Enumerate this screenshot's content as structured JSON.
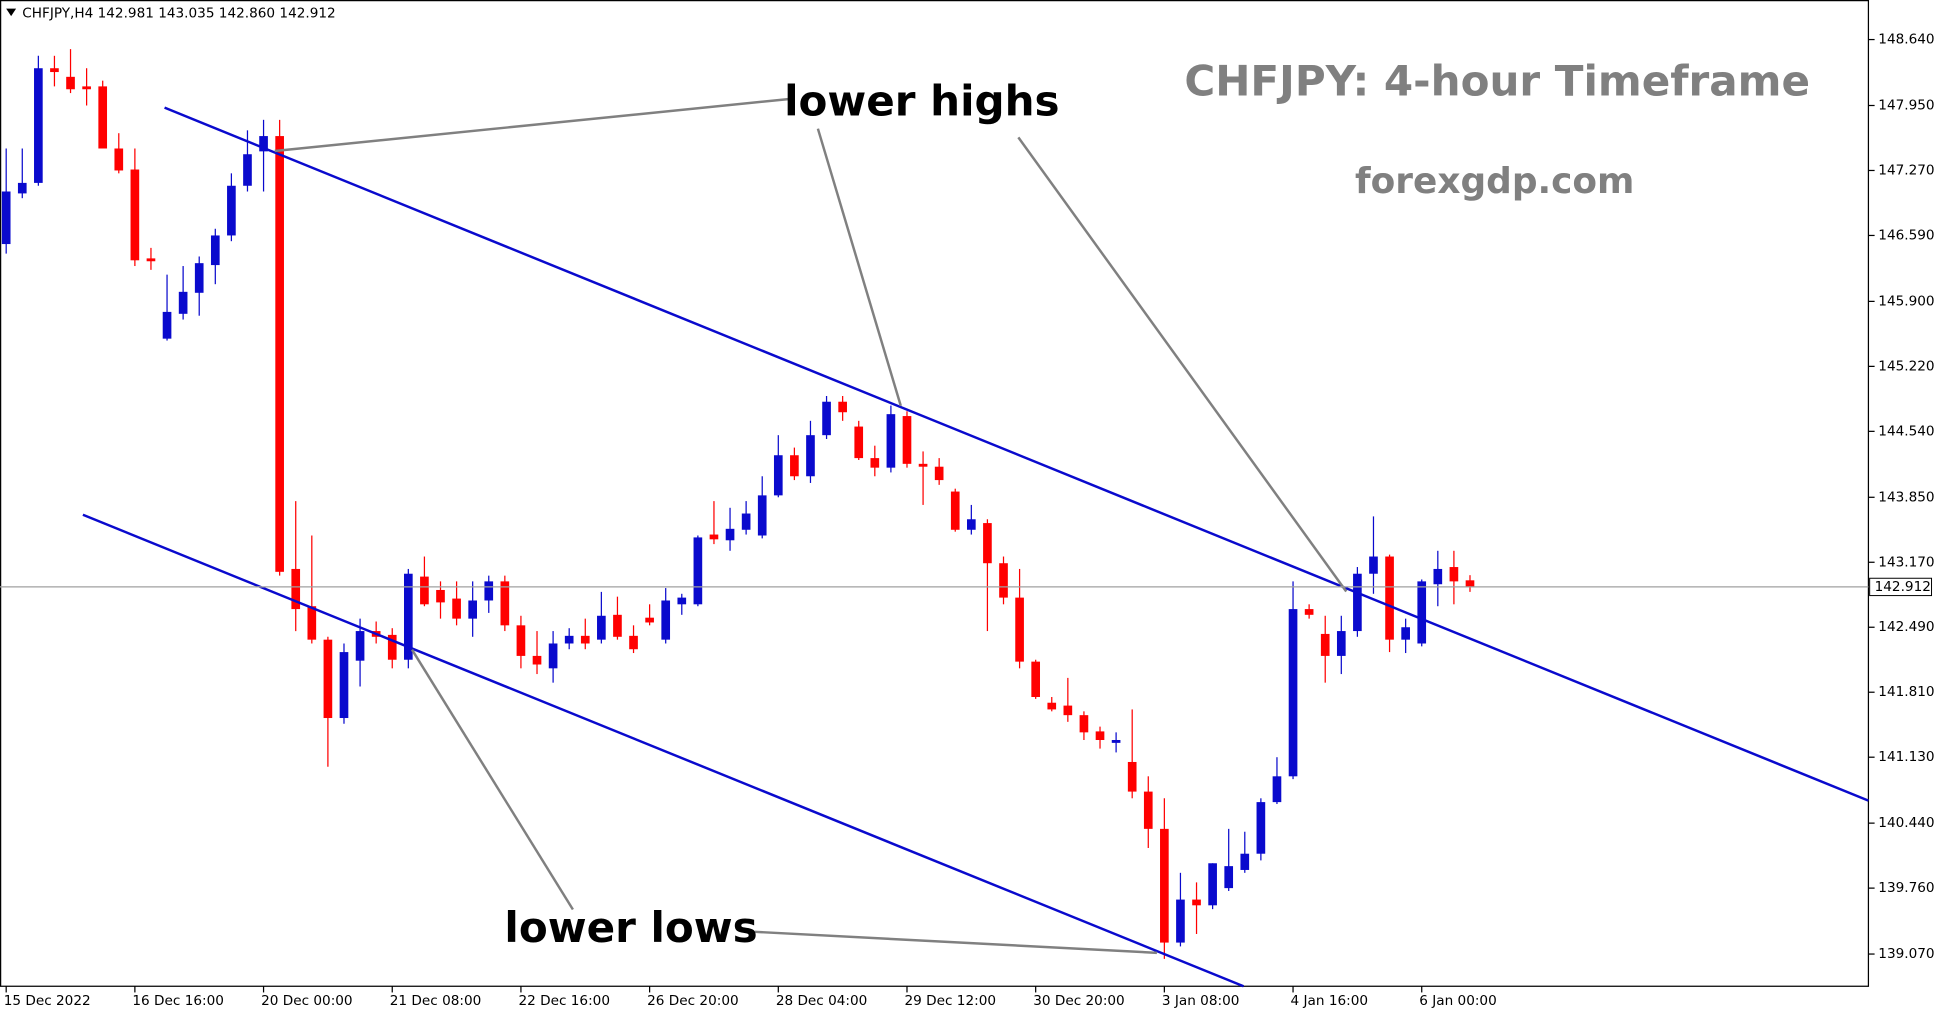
{
  "chart_data": {
    "type": "candlestick",
    "header": "CHFJPY,H4  142.981 143.035 142.860 142.912",
    "title": "CHFJPY: 4-hour Timeframe",
    "subtitle": "forexgdp.com",
    "annotations": [
      "lower highs",
      "lower lows"
    ],
    "up_color": "#0a0acd",
    "down_color": "#ff0000",
    "categories": [
      "15 Dec 2022",
      null,
      null,
      null,
      null,
      null,
      null,
      null,
      "16 Dec 16:00",
      null,
      null,
      null,
      null,
      null,
      null,
      null,
      "20 Dec 00:00",
      null,
      null,
      null,
      null,
      null,
      null,
      null,
      "21 Dec 08:00",
      null,
      null,
      null,
      null,
      null,
      null,
      null,
      "22 Dec 16:00",
      null,
      null,
      null,
      null,
      null,
      null,
      null,
      "26 Dec 20:00",
      null,
      null,
      null,
      null,
      null,
      null,
      null,
      "28 Dec 04:00",
      null,
      null,
      null,
      null,
      null,
      null,
      null,
      "29 Dec 12:00",
      null,
      null,
      null,
      null,
      null,
      null,
      null,
      "30 Dec 20:00",
      null,
      null,
      null,
      null,
      null,
      null,
      null,
      "3 Jan 08:00",
      null,
      null,
      null,
      null,
      null,
      null,
      null,
      "4 Jan 16:00",
      null,
      null,
      null,
      null,
      null,
      null,
      null,
      "6 Jan 00:00",
      null,
      null,
      null
    ],
    "open": [
      146.5,
      147.03,
      147.14,
      148.34,
      148.25,
      148.15,
      148.15,
      147.5,
      147.28,
      146.35,
      145.51,
      145.77,
      145.99,
      146.28,
      146.59,
      147.11,
      147.47,
      147.63,
      143.1,
      142.71,
      142.36,
      141.54,
      142.14,
      142.45,
      142.41,
      142.15,
      143.02,
      142.88,
      142.79,
      142.58,
      142.77,
      142.97,
      142.51,
      142.19,
      142.06,
      142.32,
      142.4,
      142.36,
      142.62,
      142.4,
      142.59,
      142.36,
      142.73,
      142.73,
      143.46,
      143.4,
      143.51,
      143.45,
      143.87,
      144.29,
      144.07,
      144.5,
      144.85,
      144.59,
      144.26,
      144.16,
      144.7,
      144.2,
      144.17,
      143.91,
      143.51,
      143.58,
      143.16,
      142.8,
      142.13,
      141.7,
      141.67,
      141.57,
      141.4,
      141.28,
      141.08,
      140.77,
      140.38,
      139.19,
      139.64,
      139.58,
      139.76,
      139.95,
      140.12,
      140.66,
      140.93,
      142.68,
      142.42,
      142.19,
      142.45,
      143.05,
      143.23,
      142.36,
      142.32,
      142.94,
      143.12,
      142.981
    ],
    "high": [
      147.5,
      147.5,
      148.47,
      148.47,
      148.54,
      148.34,
      148.21,
      147.66,
      147.5,
      146.46,
      146.18,
      146.27,
      146.37,
      146.66,
      147.24,
      147.69,
      147.8,
      147.8,
      143.81,
      143.45,
      142.39,
      142.32,
      142.58,
      142.55,
      142.48,
      143.1,
      143.23,
      142.97,
      142.97,
      142.97,
      143.03,
      143.03,
      142.61,
      142.45,
      142.45,
      142.48,
      142.58,
      142.86,
      142.81,
      142.51,
      142.73,
      142.9,
      142.84,
      143.45,
      143.81,
      143.74,
      143.81,
      144.07,
      144.5,
      144.37,
      144.65,
      144.91,
      144.91,
      144.65,
      144.39,
      144.81,
      144.75,
      144.33,
      144.26,
      143.94,
      143.77,
      143.62,
      143.23,
      143.1,
      142.15,
      141.76,
      141.96,
      141.61,
      141.45,
      141.39,
      141.63,
      140.93,
      140.7,
      139.92,
      139.82,
      140.02,
      140.38,
      140.35,
      140.7,
      141.13,
      142.97,
      142.73,
      142.61,
      142.61,
      143.12,
      143.65,
      143.25,
      142.58,
      142.99,
      143.29,
      143.29,
      143.035
    ],
    "low": [
      146.4,
      146.98,
      147.11,
      148.15,
      148.08,
      147.95,
      147.5,
      147.24,
      146.27,
      146.23,
      145.49,
      145.71,
      145.75,
      146.08,
      146.53,
      147.05,
      147.05,
      143.03,
      142.45,
      142.32,
      141.03,
      141.48,
      141.87,
      142.32,
      142.06,
      142.06,
      142.71,
      142.58,
      142.51,
      142.39,
      142.64,
      142.45,
      142.06,
      142.0,
      141.91,
      142.26,
      142.26,
      142.32,
      142.36,
      142.22,
      142.51,
      142.32,
      142.62,
      142.71,
      143.36,
      143.29,
      143.46,
      143.42,
      143.85,
      144.03,
      144.0,
      144.46,
      144.65,
      144.24,
      144.07,
      144.11,
      144.16,
      143.77,
      143.98,
      143.49,
      143.46,
      142.45,
      142.73,
      142.06,
      141.74,
      141.61,
      141.5,
      141.31,
      141.22,
      141.18,
      140.7,
      140.18,
      139.02,
      139.15,
      139.28,
      139.54,
      139.73,
      139.92,
      140.05,
      140.64,
      140.9,
      142.58,
      141.91,
      142.0,
      142.39,
      142.84,
      142.23,
      142.22,
      142.29,
      142.71,
      142.73,
      142.86
    ],
    "close": [
      147.05,
      147.14,
      148.34,
      148.3,
      148.12,
      148.12,
      147.5,
      147.27,
      146.33,
      146.32,
      145.79,
      146.0,
      146.3,
      146.59,
      147.11,
      147.44,
      147.63,
      143.07,
      142.68,
      142.36,
      141.54,
      142.23,
      142.45,
      142.39,
      142.15,
      143.05,
      142.73,
      142.75,
      142.58,
      142.77,
      142.97,
      142.51,
      142.19,
      142.1,
      142.32,
      142.4,
      142.32,
      142.61,
      142.39,
      142.26,
      142.54,
      142.77,
      142.8,
      143.43,
      143.41,
      143.52,
      143.68,
      143.87,
      144.29,
      144.07,
      144.5,
      144.85,
      144.74,
      144.26,
      144.16,
      144.72,
      144.2,
      144.17,
      144.03,
      143.51,
      143.62,
      143.16,
      142.8,
      142.13,
      141.76,
      141.63,
      141.57,
      141.39,
      141.31,
      141.31,
      140.77,
      140.38,
      139.19,
      139.64,
      139.58,
      140.02,
      139.99,
      140.12,
      140.66,
      140.93,
      142.68,
      142.62,
      142.19,
      142.45,
      143.05,
      143.23,
      142.36,
      142.49,
      142.97,
      143.1,
      142.97,
      142.912
    ],
    "current_price": {
      "value": 142.912,
      "label": "142.912"
    },
    "ylim": [
      138.733,
      149.054
    ],
    "yticks": [
      {
        "value": 148.64,
        "label": "148.640"
      },
      {
        "value": 147.95,
        "label": "147.950"
      },
      {
        "value": 147.27,
        "label": "147.270"
      },
      {
        "value": 146.59,
        "label": "146.590"
      },
      {
        "value": 145.9,
        "label": "145.900"
      },
      {
        "value": 145.22,
        "label": "145.220"
      },
      {
        "value": 144.54,
        "label": "144.540"
      },
      {
        "value": 143.85,
        "label": "143.850"
      },
      {
        "value": 143.17,
        "label": "143.170"
      },
      {
        "value": 142.49,
        "label": "142.490"
      },
      {
        "value": 141.81,
        "label": "141.810"
      },
      {
        "value": 141.13,
        "label": "141.130"
      },
      {
        "value": 140.44,
        "label": "140.440"
      },
      {
        "value": 139.76,
        "label": "139.760"
      },
      {
        "value": 139.07,
        "label": "139.070"
      }
    ],
    "grid": false
  }
}
